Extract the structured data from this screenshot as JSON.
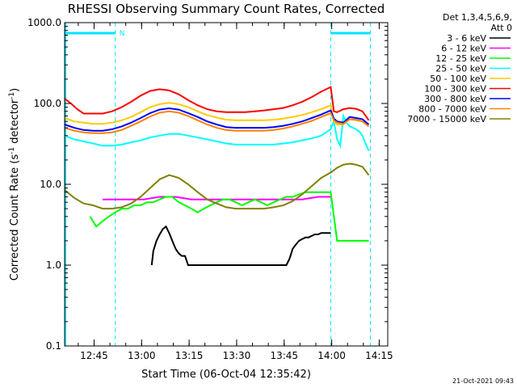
{
  "chart_data": {
    "type": "line",
    "title": "RHESSI Observing Summary Count Rates, Corrected",
    "xlabel": "Start Time (06-Oct-04 12:35:42)",
    "ylabel_main": "Corrected Count Rate (s",
    "ylabel_sup1": "-1",
    "ylabel_mid": " detector",
    "ylabel_sup2": "-1",
    "ylabel_end": ")",
    "yscale": "log",
    "ylim": [
      0.1,
      1000
    ],
    "xlim_min": [
      0,
      102
    ],
    "grid": false,
    "legend_placement": "right",
    "legend_header": [
      "Det 1,3,4,5,6,9,",
      "Att 0"
    ],
    "y_ticks": [
      {
        "v": 1000,
        "label": "1000.0"
      },
      {
        "v": 100,
        "label": "100.0"
      },
      {
        "v": 10,
        "label": "10.0"
      },
      {
        "v": 1,
        "label": "1.0"
      },
      {
        "v": 0.1,
        "label": "0.1"
      }
    ],
    "x_ticks": [
      {
        "v": 9.3,
        "label": "12:45"
      },
      {
        "v": 24.3,
        "label": "13:00"
      },
      {
        "v": 39.3,
        "label": "13:15"
      },
      {
        "v": 54.3,
        "label": "13:30"
      },
      {
        "v": 69.3,
        "label": "13:45"
      },
      {
        "v": 84.3,
        "label": "14:00"
      },
      {
        "v": 99.3,
        "label": "14:15"
      }
    ],
    "flag_label": "N",
    "flag_intervals": [
      [
        0,
        16
      ],
      [
        84,
        96.5
      ]
    ],
    "marker_lines": [
      16,
      84,
      96.5
    ],
    "footer": "21-Oct-2021 09:43",
    "series": [
      {
        "name": "3 - 6 keV",
        "color": "#000000",
        "x": [
          27.5,
          28,
          29,
          30,
          31,
          32,
          33,
          34,
          35,
          36,
          37,
          38,
          39,
          70,
          71,
          72,
          73,
          74,
          75,
          76,
          77,
          78,
          79,
          80,
          81,
          82,
          83,
          84
        ],
        "y": [
          1.0,
          1.5,
          2.0,
          2.4,
          2.8,
          3.0,
          2.5,
          2.0,
          1.6,
          1.4,
          1.3,
          1.3,
          1.0,
          1.0,
          1.2,
          1.6,
          1.8,
          2.0,
          2.1,
          2.2,
          2.2,
          2.3,
          2.4,
          2.4,
          2.5,
          2.5,
          2.5,
          2.5
        ]
      },
      {
        "name": "6 - 12 keV",
        "color": "#ff00ff",
        "x": [
          12,
          15,
          20,
          25,
          30,
          35,
          40,
          45,
          50,
          55,
          60,
          65,
          70,
          75,
          80,
          84
        ],
        "y": [
          6.5,
          6.5,
          6.5,
          6.5,
          7.0,
          7.0,
          6.5,
          6.5,
          6.5,
          6.5,
          6.5,
          6.5,
          6.5,
          6.5,
          7.0,
          7.0
        ]
      },
      {
        "name": "12 - 25 keV",
        "color": "#00ff00",
        "x": [
          8,
          10,
          12,
          14,
          16,
          18,
          20,
          22,
          24,
          26,
          28,
          30,
          32,
          34,
          36,
          38,
          40,
          42,
          44,
          46,
          48,
          50,
          52,
          54,
          56,
          58,
          60,
          62,
          64,
          66,
          68,
          70,
          72,
          74,
          76,
          78,
          80,
          82,
          84,
          86,
          88,
          90,
          92,
          94,
          96
        ],
        "y": [
          4,
          3,
          3.5,
          4,
          4.5,
          5,
          5,
          5.5,
          5.5,
          6,
          6,
          6.5,
          7,
          7,
          6,
          5.5,
          5,
          4.5,
          5,
          5.5,
          6,
          6.5,
          6.5,
          6,
          5.5,
          6,
          6.5,
          6,
          5.5,
          6,
          6.5,
          7,
          7,
          7.5,
          8,
          8,
          8,
          8,
          8,
          2.0,
          2.0,
          2.0,
          2.0,
          2.0,
          2.0
        ]
      },
      {
        "name": "25 - 50 keV",
        "color": "#00ffff",
        "x": [
          0,
          3,
          6,
          9,
          12,
          15,
          18,
          21,
          24,
          27,
          30,
          33,
          36,
          39,
          42,
          45,
          48,
          51,
          54,
          57,
          60,
          63,
          66,
          69,
          72,
          75,
          78,
          81,
          84,
          85,
          86,
          87,
          88,
          89,
          90,
          91,
          92,
          93,
          94,
          95,
          96
        ],
        "y": [
          40,
          36,
          34,
          32,
          30,
          30,
          31,
          33,
          35,
          38,
          40,
          42,
          42,
          40,
          38,
          36,
          34,
          32,
          31,
          31,
          31,
          31,
          31,
          32,
          33,
          35,
          37,
          40,
          48,
          60,
          36,
          30,
          70,
          58,
          52,
          50,
          48,
          45,
          40,
          32,
          26
        ]
      },
      {
        "name": "50 - 100 keV",
        "color": "#ffcc00",
        "x": [
          0,
          3,
          6,
          9,
          12,
          15,
          18,
          21,
          24,
          27,
          30,
          33,
          36,
          39,
          42,
          45,
          48,
          51,
          54,
          57,
          60,
          63,
          66,
          69,
          72,
          75,
          78,
          81,
          84,
          85,
          86,
          88,
          90,
          92,
          94,
          96
        ],
        "y": [
          66,
          60,
          58,
          56,
          56,
          58,
          62,
          68,
          78,
          90,
          98,
          102,
          98,
          90,
          80,
          72,
          67,
          63,
          62,
          62,
          62,
          62,
          63,
          65,
          68,
          72,
          78,
          85,
          95,
          60,
          55,
          55,
          64,
          62,
          60,
          55
        ]
      },
      {
        "name": "100 - 300 keV",
        "color": "#ff0000",
        "x": [
          0,
          2,
          4,
          6,
          9,
          12,
          15,
          18,
          21,
          24,
          27,
          30,
          33,
          36,
          39,
          42,
          45,
          48,
          51,
          54,
          57,
          60,
          63,
          66,
          69,
          72,
          75,
          78,
          81,
          84,
          85,
          86,
          88,
          90,
          92,
          94,
          96
        ],
        "y": [
          115,
          100,
          85,
          75,
          75,
          75,
          80,
          90,
          105,
          125,
          143,
          150,
          145,
          130,
          110,
          95,
          85,
          80,
          78,
          78,
          78,
          80,
          82,
          85,
          88,
          95,
          105,
          120,
          140,
          160,
          80,
          78,
          85,
          88,
          86,
          80,
          62
        ]
      },
      {
        "name": "300 - 800 keV",
        "color": "#0000ff",
        "x": [
          0,
          3,
          6,
          9,
          12,
          15,
          18,
          21,
          24,
          27,
          30,
          33,
          36,
          39,
          42,
          45,
          48,
          51,
          54,
          57,
          60,
          63,
          66,
          69,
          72,
          75,
          78,
          81,
          84,
          85,
          86,
          88,
          90,
          92,
          94,
          96
        ],
        "y": [
          55,
          50,
          47,
          46,
          46,
          48,
          52,
          58,
          66,
          76,
          84,
          87,
          84,
          76,
          68,
          60,
          55,
          51,
          50,
          50,
          50,
          50,
          51,
          53,
          56,
          60,
          66,
          73,
          82,
          65,
          60,
          58,
          68,
          66,
          64,
          55
        ]
      },
      {
        "name": "800 - 7000 keV",
        "color": "#ff8000",
        "x": [
          0,
          3,
          6,
          9,
          12,
          15,
          18,
          21,
          24,
          27,
          30,
          33,
          36,
          39,
          42,
          45,
          48,
          51,
          54,
          57,
          60,
          63,
          66,
          69,
          72,
          75,
          78,
          81,
          84,
          85,
          86,
          88,
          90,
          92,
          94,
          96
        ],
        "y": [
          50,
          46,
          44,
          43,
          43,
          44,
          47,
          53,
          60,
          69,
          77,
          80,
          77,
          70,
          62,
          55,
          50,
          47,
          46,
          46,
          46,
          46,
          47,
          49,
          52,
          56,
          61,
          68,
          76,
          62,
          58,
          56,
          64,
          63,
          60,
          52
        ]
      },
      {
        "name": "7000 - 15000 keV",
        "color": "#808000",
        "x": [
          0,
          3,
          6,
          9,
          12,
          15,
          18,
          21,
          24,
          27,
          30,
          33,
          36,
          39,
          42,
          45,
          48,
          51,
          54,
          57,
          60,
          63,
          66,
          69,
          72,
          75,
          78,
          81,
          84,
          86,
          88,
          90,
          92,
          94,
          96
        ],
        "y": [
          8.5,
          6.8,
          5.8,
          5.5,
          5.0,
          5.0,
          5.2,
          5.8,
          7.0,
          9.0,
          11.5,
          13.0,
          12.0,
          10.0,
          8.0,
          6.5,
          5.8,
          5.2,
          5.0,
          5.0,
          5.0,
          5.0,
          5.2,
          5.5,
          6.2,
          7.5,
          9.5,
          12.0,
          14.0,
          16.0,
          17.5,
          18.0,
          17.5,
          16.5,
          13.0
        ]
      }
    ]
  }
}
